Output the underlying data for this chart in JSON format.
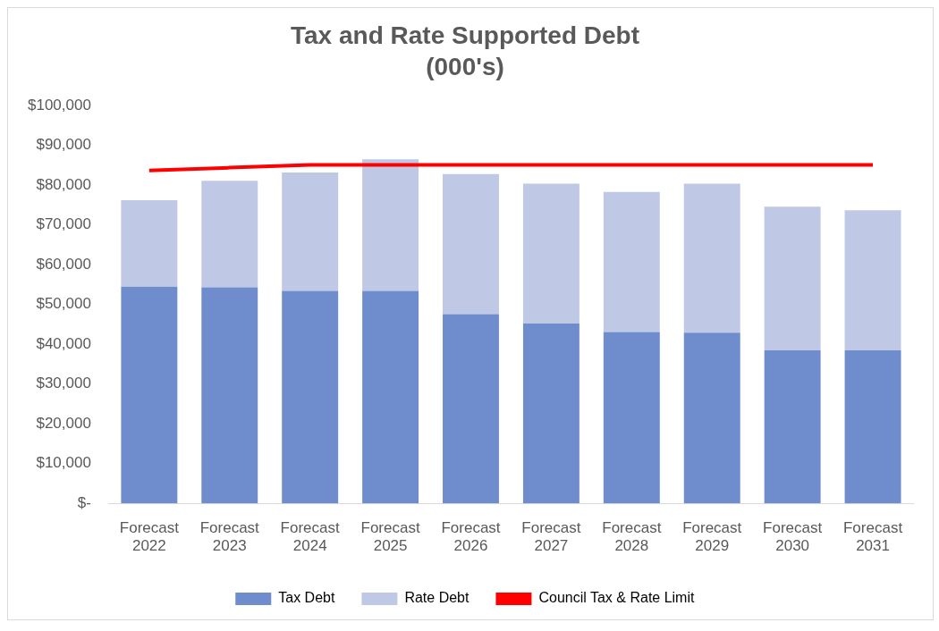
{
  "chart_data": {
    "type": "bar",
    "title": "Tax and Rate Supported Debt",
    "subtitle": "(000's)",
    "categories": [
      "Forecast\n2022",
      "Forecast\n2023",
      "Forecast\n2024",
      "Forecast\n2025",
      "Forecast\n2026",
      "Forecast\n2027",
      "Forecast\n2028",
      "Forecast\n2029",
      "Forecast\n2030",
      "Forecast\n2031"
    ],
    "stacked": true,
    "series": [
      {
        "name": "Tax Debt",
        "color": "#6f8ccc",
        "values": [
          54500,
          54300,
          53400,
          53400,
          47600,
          45200,
          43100,
          42900,
          38500,
          38500
        ]
      },
      {
        "name": "Rate Debt",
        "color": "#bfc8e4",
        "values": [
          21700,
          26800,
          29800,
          33100,
          35200,
          35200,
          35200,
          37500,
          36100,
          35200
        ]
      },
      {
        "name": "Council Tax & Rate Limit",
        "type": "line",
        "color": "#ff0000",
        "values": [
          83700,
          84400,
          85100,
          85100,
          85100,
          85100,
          85100,
          85100,
          85100,
          85100
        ]
      }
    ],
    "ylim": [
      0,
      100000
    ],
    "yticks": [
      {
        "value": 0,
        "label": "$-"
      },
      {
        "value": 10000,
        "label": "$10,000"
      },
      {
        "value": 20000,
        "label": "$20,000"
      },
      {
        "value": 30000,
        "label": "$30,000"
      },
      {
        "value": 40000,
        "label": "$40,000"
      },
      {
        "value": 50000,
        "label": "$50,000"
      },
      {
        "value": 60000,
        "label": "$60,000"
      },
      {
        "value": 70000,
        "label": "$70,000"
      },
      {
        "value": 80000,
        "label": "$80,000"
      },
      {
        "value": 90000,
        "label": "$90,000"
      },
      {
        "value": 100000,
        "label": "$100,000"
      }
    ],
    "grid": false,
    "legend": "bottom",
    "marker": "none"
  }
}
